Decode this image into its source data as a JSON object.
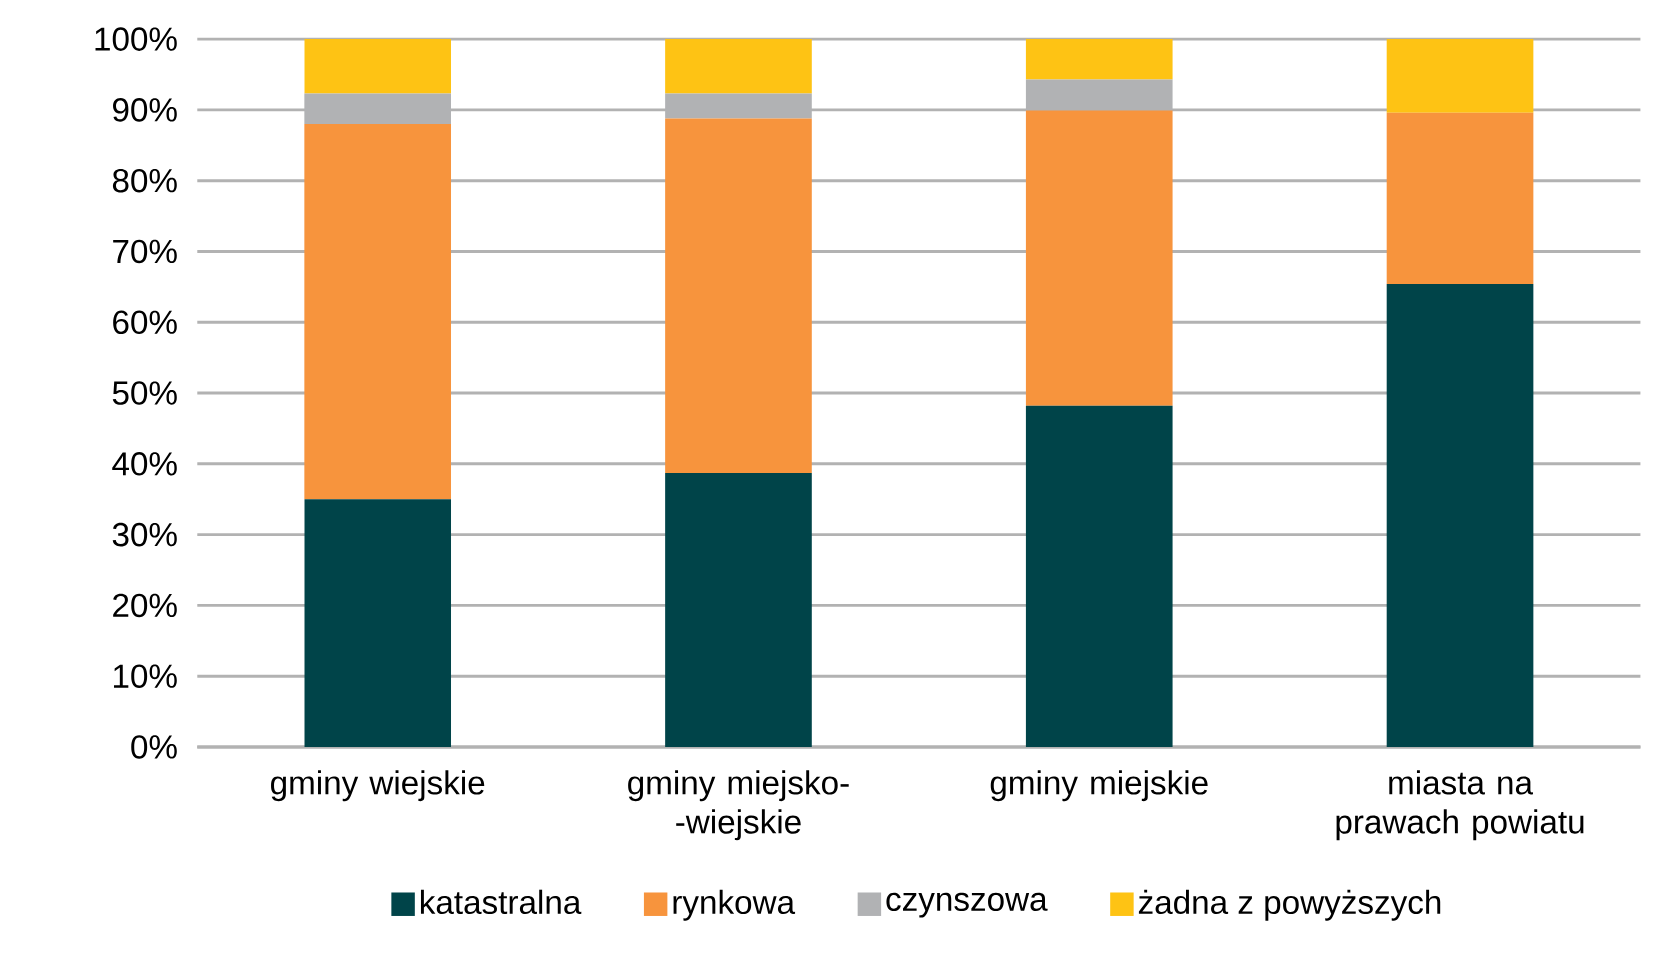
{
  "chart_data": {
    "type": "bar",
    "stacked": true,
    "categories": [
      "gminy wiejskie",
      "gminy miejsko- -wiejskie",
      "gminy miejskie",
      "miasta na prawach powiatu"
    ],
    "series": [
      {
        "name": "katastralna",
        "color": "#004449",
        "values": [
          35.0,
          38.7,
          48.2,
          65.4
        ]
      },
      {
        "name": "rynkowa",
        "color": "#f7943d",
        "values": [
          53.0,
          50.1,
          41.7,
          24.2
        ]
      },
      {
        "name": "czynszowa",
        "color": "#b1b2b4",
        "values": [
          4.3,
          3.5,
          4.4,
          0
        ]
      },
      {
        "name": "żadna z powyższych",
        "color": "#fec314",
        "values": [
          7.7,
          7.7,
          5.7,
          10.4
        ]
      }
    ],
    "ylim": [
      0,
      100
    ],
    "yticks": [
      {
        "value": 0,
        "label": "0%"
      },
      {
        "value": 10,
        "label": "10%"
      },
      {
        "value": 20,
        "label": "20%"
      },
      {
        "value": 30,
        "label": "30%"
      },
      {
        "value": 40,
        "label": "40%"
      },
      {
        "value": 50,
        "label": "50%"
      },
      {
        "value": 60,
        "label": "60%"
      },
      {
        "value": 70,
        "label": "70%"
      },
      {
        "value": 80,
        "label": "80%"
      },
      {
        "value": 90,
        "label": "90%"
      },
      {
        "value": 100,
        "label": "100%"
      }
    ],
    "grid": "y",
    "legend": "bottom"
  }
}
